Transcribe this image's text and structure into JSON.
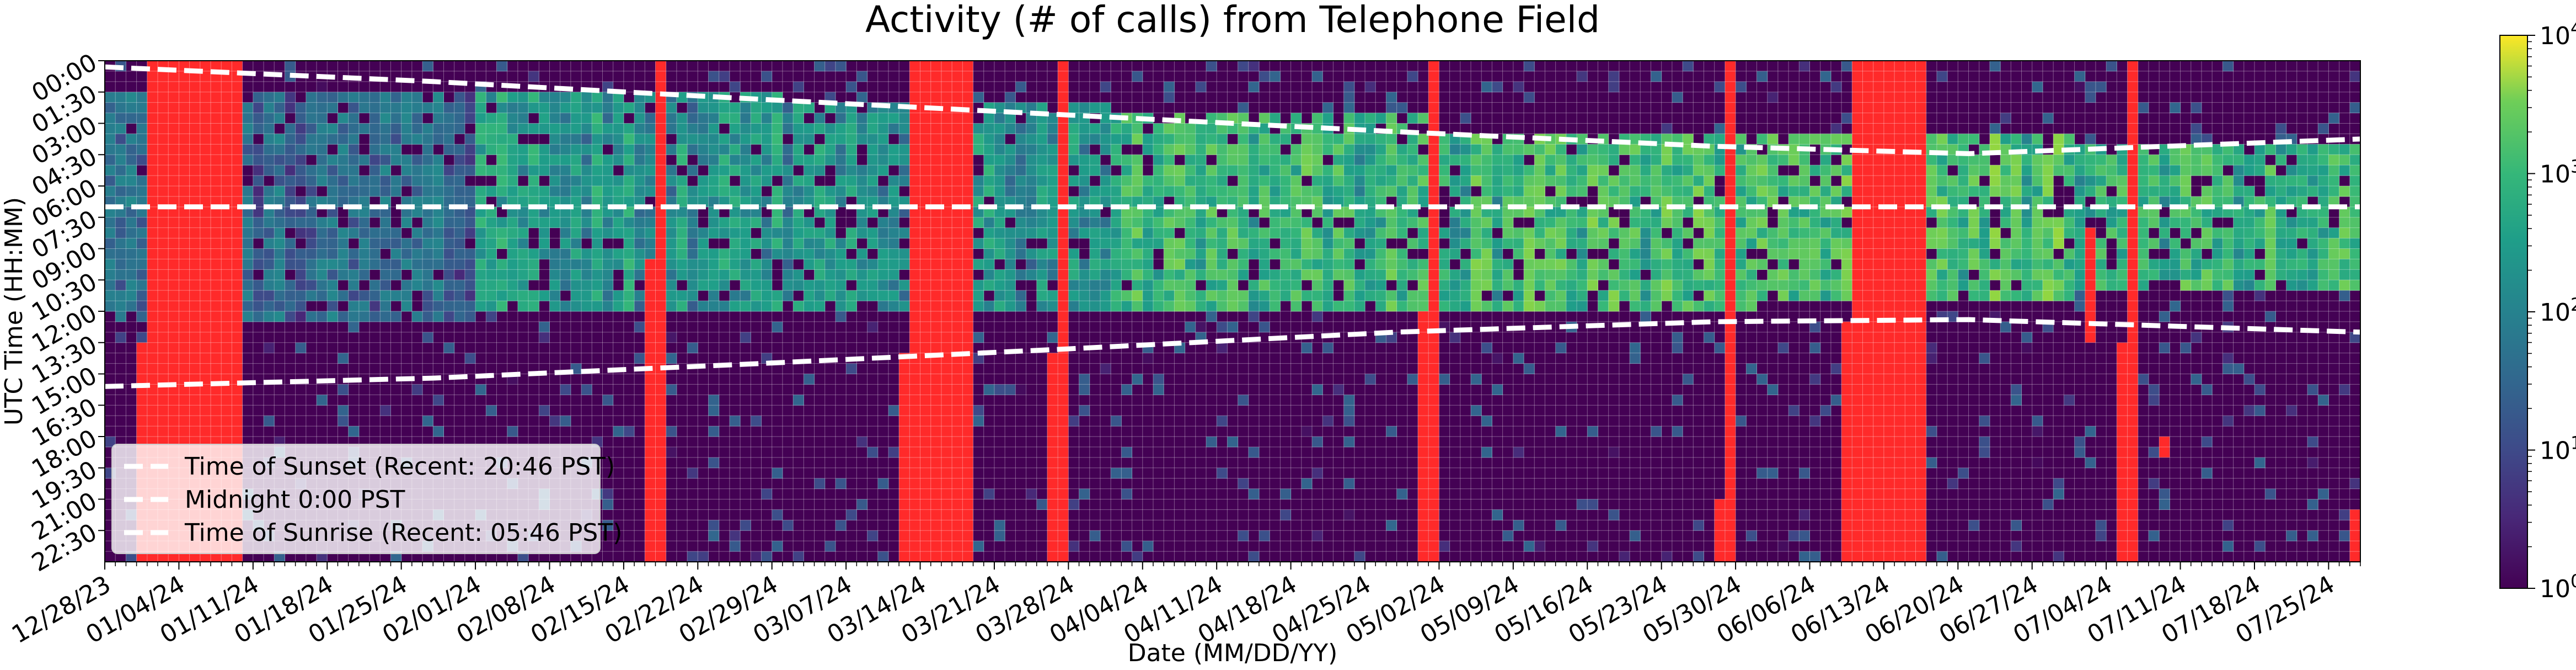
{
  "chart_data": {
    "type": "heatmap",
    "title": "Activity (# of calls) from Telephone Field",
    "xlabel": "Date (MM/DD/YY)",
    "ylabel": "UTC Time (HH:MM)",
    "x_range": [
      "12/28/23",
      "07/28/24"
    ],
    "x_tick_labels": [
      "12/28/23",
      "01/04/24",
      "01/11/24",
      "01/18/24",
      "01/25/24",
      "02/01/24",
      "02/08/24",
      "02/15/24",
      "02/22/24",
      "02/29/24",
      "03/07/24",
      "03/14/24",
      "03/21/24",
      "03/28/24",
      "04/04/24",
      "04/11/24",
      "04/18/24",
      "04/25/24",
      "05/02/24",
      "05/09/24",
      "05/16/24",
      "05/23/24",
      "05/30/24",
      "06/06/24",
      "06/13/24",
      "06/20/24",
      "06/27/24",
      "07/04/24",
      "07/11/24",
      "07/18/24",
      "07/25/24"
    ],
    "y_tick_labels": [
      "00:00",
      "01:30",
      "03:00",
      "04:30",
      "06:00",
      "07:30",
      "09:00",
      "10:30",
      "12:00",
      "13:30",
      "15:00",
      "16:30",
      "18:00",
      "19:30",
      "21:00",
      "22:30"
    ],
    "y_bin_minutes": 30,
    "grid": true,
    "colorbar": {
      "scale": "log",
      "colormap": "viridis",
      "range": [
        1,
        10000
      ],
      "tick_labels": [
        "10^0",
        "10^1",
        "10^2",
        "10^3",
        "10^4"
      ]
    },
    "missing_data_color": "#ff2a2a",
    "missing_data_periods": [
      {
        "start": "01/01/24",
        "end": "01/10/24",
        "start_hour": 0,
        "end_hour": 24
      },
      {
        "start": "12/31/23",
        "end": "01/01/24",
        "start_hour": 13.5,
        "end_hour": 24
      },
      {
        "start": "02/18/24",
        "end": "02/19/24",
        "start_hour": 0,
        "end_hour": 24
      },
      {
        "start": "02/17/24",
        "end": "02/18/24",
        "start_hour": 9.5,
        "end_hour": 24
      },
      {
        "start": "03/13/24",
        "end": "03/19/24",
        "start_hour": 0,
        "end_hour": 24
      },
      {
        "start": "03/12/24",
        "end": "03/13/24",
        "start_hour": 14,
        "end_hour": 24
      },
      {
        "start": "03/27/24",
        "end": "03/28/24",
        "start_hour": 0,
        "end_hour": 24
      },
      {
        "start": "03/26/24",
        "end": "03/27/24",
        "start_hour": 14,
        "end_hour": 24
      },
      {
        "start": "05/01/24",
        "end": "05/02/24",
        "start_hour": 0,
        "end_hour": 24
      },
      {
        "start": "04/30/24",
        "end": "05/01/24",
        "start_hour": 12,
        "end_hour": 24
      },
      {
        "start": "05/29/24",
        "end": "05/30/24",
        "start_hour": 0,
        "end_hour": 24
      },
      {
        "start": "05/28/24",
        "end": "05/29/24",
        "start_hour": 21,
        "end_hour": 24
      },
      {
        "start": "06/10/24",
        "end": "06/17/24",
        "start_hour": 0,
        "end_hour": 24
      },
      {
        "start": "06/09/24",
        "end": "06/10/24",
        "start_hour": 12.5,
        "end_hour": 24
      },
      {
        "start": "07/02/24",
        "end": "07/03/24",
        "start_hour": 8,
        "end_hour": 13.5
      },
      {
        "start": "07/06/24",
        "end": "07/07/24",
        "start_hour": 0,
        "end_hour": 24
      },
      {
        "start": "07/05/24",
        "end": "07/06/24",
        "start_hour": 13.5,
        "end_hour": 24
      },
      {
        "start": "07/09/24",
        "end": "07/10/24",
        "start_hour": 18,
        "end_hour": 19
      },
      {
        "start": "07/27/24",
        "end": "07/28/24",
        "start_hour": 21.5,
        "end_hour": 24
      }
    ],
    "overlay_lines": [
      {
        "name": "Time of Sunset (Recent: 20:46 PST)",
        "color": "#ffffff",
        "style": "dashed",
        "x": [
          "12/28/23",
          "01/28/24",
          "02/28/24",
          "03/28/24",
          "04/28/24",
          "05/28/24",
          "06/21/24",
          "07/28/24"
        ],
        "y_hour": [
          0.3,
          1.0,
          1.85,
          2.6,
          3.4,
          4.1,
          4.45,
          3.75
        ]
      },
      {
        "name": "Midnight 0:00 PST",
        "color": "#ffffff",
        "style": "dashed",
        "x": [
          "12/28/23",
          "07/28/24"
        ],
        "y_hour": [
          7.0,
          7.0
        ]
      },
      {
        "name": "Time of Sunrise (Recent: 05:46 PST)",
        "color": "#ffffff",
        "style": "dashed",
        "x": [
          "12/28/23",
          "01/28/24",
          "02/28/24",
          "03/28/24",
          "04/28/24",
          "05/28/24",
          "06/21/24",
          "07/28/24"
        ],
        "y_hour": [
          15.6,
          15.2,
          14.5,
          13.8,
          13.0,
          12.5,
          12.4,
          13.0
        ]
      }
    ],
    "legend_placement": "lower-left",
    "activity_pattern": {
      "description_free": true,
      "active_hours_start_by_month": [
        {
          "month": "01/24",
          "start_hour": 1.5,
          "end_hour": 12.5,
          "typical_level": 30
        },
        {
          "month": "02/24",
          "start_hour": 1.5,
          "end_hour": 12.0,
          "typical_level": 200
        },
        {
          "month": "03/24",
          "start_hour": 2.0,
          "end_hour": 12.0,
          "typical_level": 150
        },
        {
          "month": "04/24",
          "start_hour": 2.5,
          "end_hour": 12.0,
          "typical_level": 600
        },
        {
          "month": "05/24",
          "start_hour": 3.5,
          "end_hour": 12.0,
          "typical_level": 700
        },
        {
          "month": "06/24",
          "start_hour": 3.5,
          "end_hour": 11.5,
          "typical_level": 900
        },
        {
          "month": "07/24",
          "start_hour": 4.0,
          "end_hour": 11.0,
          "typical_level": 500
        }
      ]
    }
  }
}
